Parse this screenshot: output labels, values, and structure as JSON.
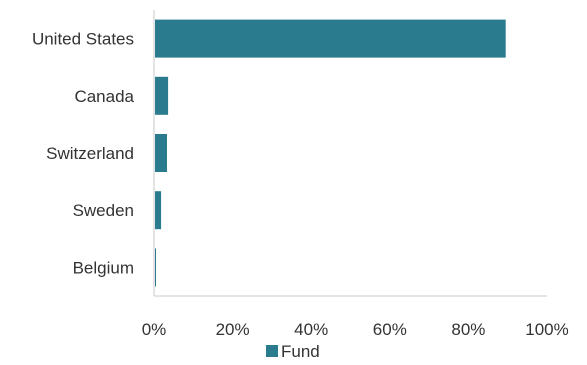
{
  "chart_data": {
    "type": "bar",
    "orientation": "horizontal",
    "categories": [
      "United States",
      "Canada",
      "Switzerland",
      "Sweden",
      "Belgium"
    ],
    "series": [
      {
        "name": "Fund",
        "values": [
          89.5,
          3.6,
          3.3,
          1.8,
          0.4
        ],
        "color": "#2b7b8f"
      }
    ],
    "x_ticks": [
      "0%",
      "20%",
      "40%",
      "60%",
      "80%",
      "100%"
    ],
    "xlim": [
      0,
      100
    ],
    "grid": false,
    "legend_position": "bottom"
  }
}
